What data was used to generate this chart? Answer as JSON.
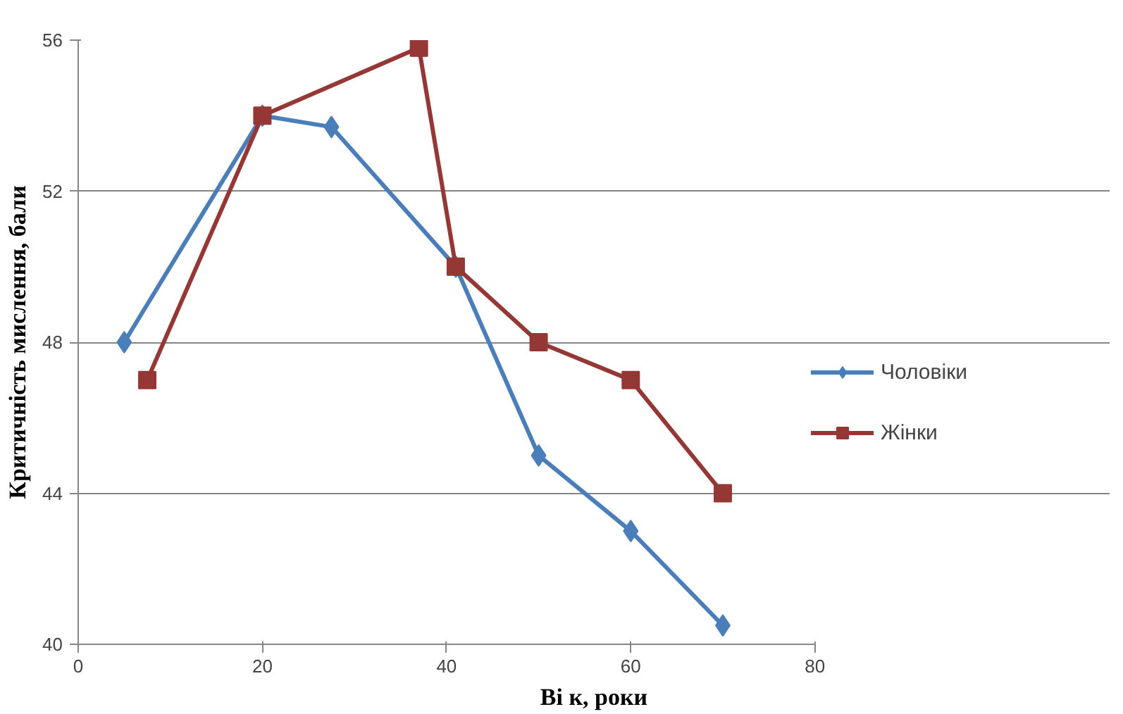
{
  "chart_data": {
    "type": "line",
    "xlabel": "Ві к, роки",
    "ylabel": "Критичність мислення, бали",
    "xlim": [
      0,
      80
    ],
    "xticks": [
      0,
      20,
      40,
      60,
      80
    ],
    "ylim": [
      40,
      56
    ],
    "yticks": [
      40,
      44,
      48,
      52,
      56
    ],
    "grid": "y",
    "legend": "right",
    "line_style": "solid",
    "series": [
      {
        "name": "Чоловіки",
        "color": "#4a7ebb",
        "marker": "diamond",
        "x": [
          5,
          20,
          27.5,
          41,
          50,
          60,
          70
        ],
        "values": [
          48,
          54,
          53.7,
          50,
          45,
          43,
          40.5
        ]
      },
      {
        "name": "Жінки",
        "color": "#953735",
        "marker": "square",
        "x": [
          7.5,
          20,
          37,
          41,
          50,
          60,
          70
        ],
        "values": [
          47,
          54,
          55.8,
          50,
          48,
          47,
          44
        ]
      }
    ]
  }
}
